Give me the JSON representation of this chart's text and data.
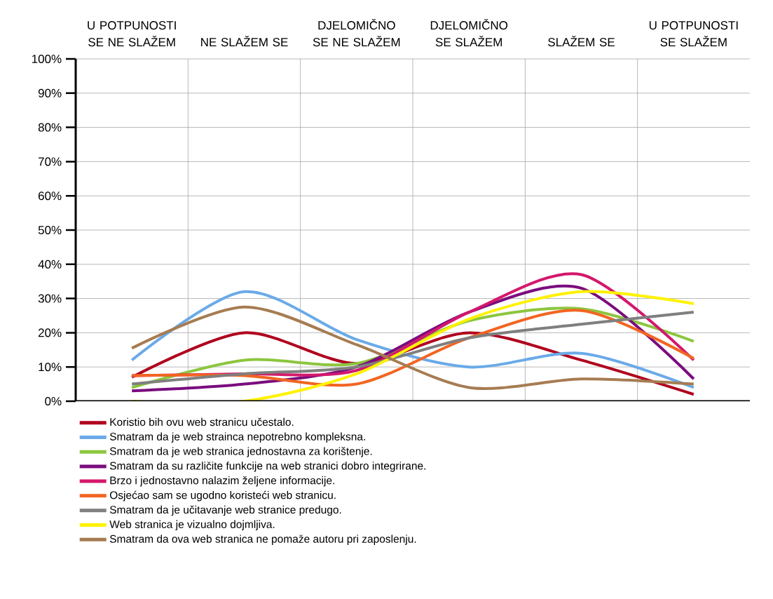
{
  "chart_data": {
    "type": "line",
    "categories": [
      "U POTPUNOSTI SE NE SLAŽEM",
      "NE SLAŽEM SE",
      "DJELOMIČNO SE NE SLAŽEM",
      "DJELOMIČNO SE SLAŽEM",
      "SLAŽEM SE",
      "U POTPUNOSTI SE SLAŽEM"
    ],
    "series": [
      {
        "name": "Koristio bih ovu web stranicu učestalo.",
        "color": "#b0001e",
        "values": [
          7,
          20,
          11,
          20,
          12,
          2
        ]
      },
      {
        "name": "Smatram da je web strainca nepotrebno kompleksna.",
        "color": "#6aaae8",
        "values": [
          12,
          32,
          18,
          10,
          14,
          4
        ]
      },
      {
        "name": "Smatram da je web stranica jednostavna za korištenje.",
        "color": "#8cc63f",
        "values": [
          4,
          12,
          11,
          23.5,
          27,
          17.5
        ]
      },
      {
        "name": "Smatram da su različite funkcije na web stranici dobro integrirane.",
        "color": "#7b0c7e",
        "values": [
          3,
          5,
          10,
          26,
          33,
          6.5
        ]
      },
      {
        "name": "Brzo i jednostavno nalazim željene informacije.",
        "color": "#d4176c",
        "values": [
          7.5,
          8,
          9,
          26,
          37,
          12
        ]
      },
      {
        "name": "Osjećao sam se ugodno koristeći web stranicu.",
        "color": "#f26522",
        "values": [
          7.5,
          7.5,
          5,
          18.5,
          26.5,
          12.5
        ]
      },
      {
        "name": "Smatram da je učitavanje web stranice predugo.",
        "color": "#7f7f7f",
        "values": [
          5,
          8,
          10,
          18.5,
          22.5,
          26
        ]
      },
      {
        "name": "Web stranica je vizualno dojmljiva.",
        "color": "#fff200",
        "values": [
          0,
          0,
          8,
          24,
          32,
          28.5
        ]
      },
      {
        "name": "Smatram da ova web stranica ne pomaže autoru pri zaposlenju.",
        "color": "#a67c52",
        "values": [
          15.5,
          27.5,
          16.5,
          4,
          6.5,
          5
        ]
      }
    ],
    "ylim": [
      0,
      100
    ],
    "yticks": [
      {
        "value": 0,
        "label": "0%"
      },
      {
        "value": 10,
        "label": "10%"
      },
      {
        "value": 20,
        "label": "20%"
      },
      {
        "value": 30,
        "label": "30%"
      },
      {
        "value": 40,
        "label": "40%"
      },
      {
        "value": 50,
        "label": "50%"
      },
      {
        "value": 60,
        "label": "60%"
      },
      {
        "value": 70,
        "label": "70%"
      },
      {
        "value": 80,
        "label": "80%"
      },
      {
        "value": 90,
        "label": "90%"
      },
      {
        "value": 100,
        "label": "100%"
      }
    ],
    "grid": true,
    "legend": "bottom",
    "marker": "none",
    "line_style": "solid"
  }
}
